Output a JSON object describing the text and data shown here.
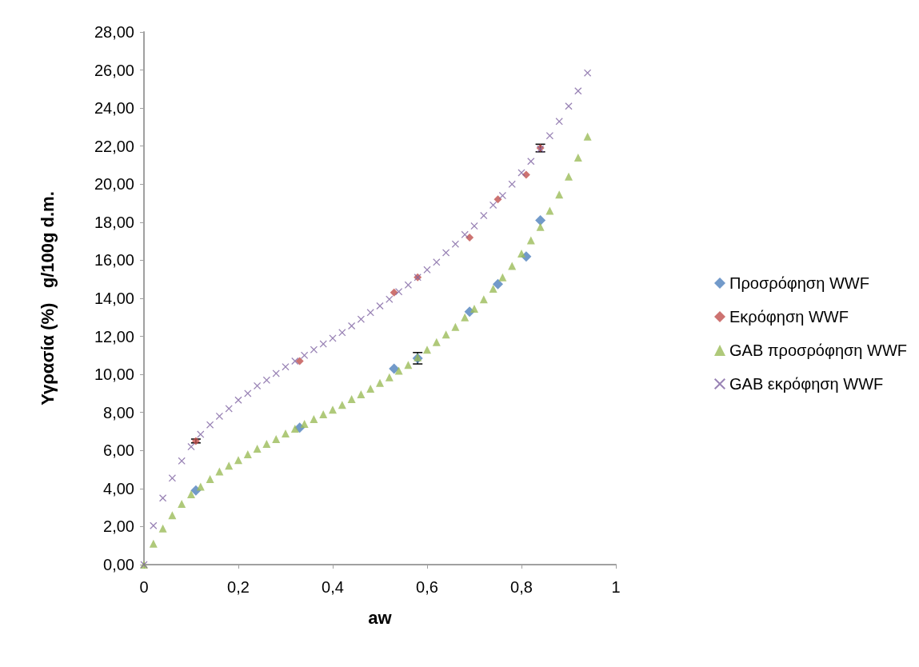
{
  "chart_data": {
    "type": "scatter",
    "xlabel": "aw",
    "ylabel": "Υγρασία (%)   g/100g d.m.",
    "xlim": [
      0,
      1
    ],
    "xticks": [
      0,
      {
        "value": 0.2,
        "label": "0,2"
      },
      {
        "value": 0.4,
        "label": "0,4"
      },
      {
        "value": 0.6,
        "label": "0,6"
      },
      {
        "value": 0.8,
        "label": "0,8"
      },
      1
    ],
    "ylim": [
      0,
      28
    ],
    "yticks": [
      {
        "value": 0,
        "label": "0,00"
      },
      {
        "value": 2,
        "label": "2,00"
      },
      {
        "value": 4,
        "label": "4,00"
      },
      {
        "value": 6,
        "label": "6,00"
      },
      {
        "value": 8,
        "label": "8,00"
      },
      {
        "value": 10,
        "label": "10,00"
      },
      {
        "value": 12,
        "label": "12,00"
      },
      {
        "value": 14,
        "label": "14,00"
      },
      {
        "value": 16,
        "label": "16,00"
      },
      {
        "value": 18,
        "label": "18,00"
      },
      {
        "value": 20,
        "label": "20,00"
      },
      {
        "value": 22,
        "label": "22,00"
      },
      {
        "value": 24,
        "label": "24,00"
      },
      {
        "value": 26,
        "label": "26,00"
      },
      {
        "value": 28,
        "label": "28,00"
      }
    ],
    "grid": false,
    "legend": "right",
    "series": [
      {
        "name": "Προσρόφηση WWF",
        "color": "#4f81bd",
        "marker": "diamond",
        "x": [
          0.11,
          0.33,
          0.53,
          0.58,
          0.69,
          0.75,
          0.81,
          0.84
        ],
        "values": [
          3.9,
          7.2,
          10.3,
          10.85,
          13.3,
          14.75,
          16.2,
          18.1
        ],
        "errors": [
          null,
          null,
          null,
          0.3,
          null,
          null,
          null,
          null
        ]
      },
      {
        "name": "Εκρόφηση WWF",
        "color": "#c0504d",
        "marker": "diamond",
        "x": [
          0.11,
          0.33,
          0.53,
          0.58,
          0.69,
          0.75,
          0.81,
          0.84
        ],
        "values": [
          6.5,
          10.7,
          14.3,
          15.1,
          17.2,
          19.2,
          20.5,
          21.9
        ],
        "errors": [
          0.1,
          null,
          null,
          null,
          null,
          null,
          null,
          0.2
        ]
      },
      {
        "name": "GAB προσρόφηση WWF",
        "color": "#9bbb59",
        "marker": "triangle",
        "x": [
          0,
          0.02,
          0.04,
          0.06,
          0.08,
          0.1,
          0.12,
          0.14,
          0.16,
          0.18,
          0.2,
          0.22,
          0.24,
          0.26,
          0.28,
          0.3,
          0.32,
          0.34,
          0.36,
          0.38,
          0.4,
          0.42,
          0.44,
          0.46,
          0.48,
          0.5,
          0.52,
          0.54,
          0.56,
          0.58,
          0.6,
          0.62,
          0.64,
          0.66,
          0.68,
          0.7,
          0.72,
          0.74,
          0.76,
          0.78,
          0.8,
          0.82,
          0.84,
          0.86,
          0.88,
          0.9,
          0.92,
          0.94
        ],
        "values": [
          0,
          1.1,
          1.9,
          2.6,
          3.2,
          3.7,
          4.1,
          4.5,
          4.9,
          5.2,
          5.5,
          5.8,
          6.1,
          6.35,
          6.6,
          6.9,
          7.15,
          7.4,
          7.65,
          7.9,
          8.15,
          8.4,
          8.7,
          8.95,
          9.25,
          9.55,
          9.85,
          10.2,
          10.5,
          10.9,
          11.3,
          11.7,
          12.1,
          12.5,
          13.0,
          13.45,
          13.95,
          14.5,
          15.1,
          15.7,
          16.35,
          17.05,
          17.75,
          18.6,
          19.45,
          20.4,
          21.4,
          22.5
        ]
      },
      {
        "name": "GAB εκρόφηση WWF",
        "color": "#8064a2",
        "marker": "cross",
        "x": [
          0,
          0.02,
          0.04,
          0.06,
          0.08,
          0.1,
          0.12,
          0.14,
          0.16,
          0.18,
          0.2,
          0.22,
          0.24,
          0.26,
          0.28,
          0.3,
          0.32,
          0.34,
          0.36,
          0.38,
          0.4,
          0.42,
          0.44,
          0.46,
          0.48,
          0.5,
          0.52,
          0.54,
          0.56,
          0.58,
          0.6,
          0.62,
          0.64,
          0.66,
          0.68,
          0.7,
          0.72,
          0.74,
          0.76,
          0.78,
          0.8,
          0.82,
          0.84,
          0.86,
          0.88,
          0.9,
          0.92,
          0.94
        ],
        "values": [
          0,
          2.05,
          3.5,
          4.55,
          5.45,
          6.2,
          6.85,
          7.35,
          7.8,
          8.2,
          8.65,
          9.0,
          9.4,
          9.7,
          10.05,
          10.4,
          10.7,
          11.0,
          11.3,
          11.6,
          11.9,
          12.2,
          12.55,
          12.9,
          13.25,
          13.6,
          13.95,
          14.35,
          14.7,
          15.1,
          15.5,
          15.9,
          16.4,
          16.85,
          17.35,
          17.8,
          18.35,
          18.9,
          19.4,
          20.0,
          20.6,
          21.2,
          21.85,
          22.55,
          23.3,
          24.1,
          24.9,
          25.85
        ]
      }
    ]
  }
}
